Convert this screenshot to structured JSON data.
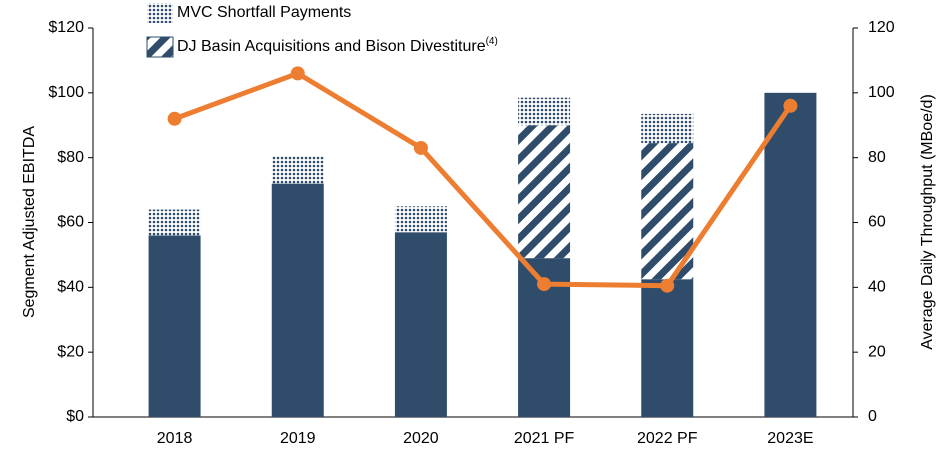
{
  "chart_data": {
    "type": "bar",
    "categories": [
      "2018",
      "2019",
      "2020",
      "2021 PF",
      "2022 PF",
      "2023E"
    ],
    "series": [
      {
        "color": "#2f4d6b",
        "values": [
          56,
          72,
          57,
          49,
          42.5,
          100
        ]
      },
      {
        "name": "DJ Basin Acquisitions and Bison Divestiture",
        "name_note": "(4)",
        "color": "#2f4d6b",
        "pattern": "stripes",
        "values": [
          0,
          0,
          0,
          41,
          42,
          0
        ]
      },
      {
        "name": "MVC Shortfall Payments",
        "color": "#2f4d6b",
        "pattern": "dots",
        "values": [
          8,
          8.5,
          8,
          8.5,
          9,
          0
        ]
      },
      {
        "type": "line",
        "axis": "y2",
        "color": "#ed7d31",
        "values": [
          92,
          106,
          83,
          41,
          40.5,
          96
        ]
      }
    ],
    "ylabel": "Segment Adjusted EBITDA",
    "y2label": "Average Daily Throughput (MBoe/d)",
    "ylim": [
      0,
      120
    ],
    "yticks": [
      {
        "value": 0,
        "label": "$0"
      },
      {
        "value": 20,
        "label": "$20"
      },
      {
        "value": 40,
        "label": "$40"
      },
      {
        "value": 60,
        "label": "$60"
      },
      {
        "value": 80,
        "label": "$80"
      },
      {
        "value": 100,
        "label": "$100"
      },
      {
        "value": 120,
        "label": "$120"
      }
    ],
    "y2lim": [
      0,
      120
    ],
    "y2ticks": [
      0,
      20,
      40,
      60,
      80,
      100,
      120
    ]
  }
}
